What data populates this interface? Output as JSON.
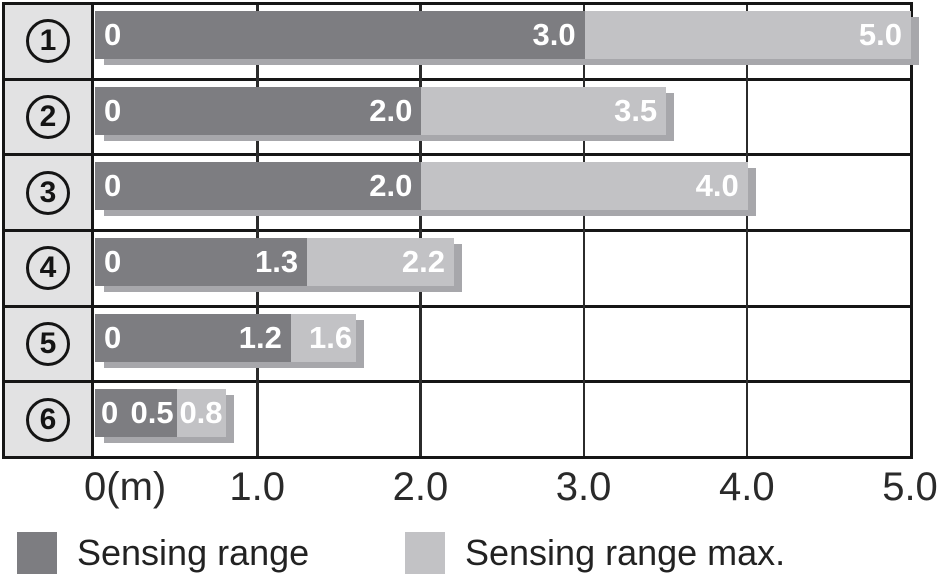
{
  "chart_data": {
    "type": "bar",
    "orientation": "horizontal",
    "title": "",
    "x_axis": {
      "origin_label": "0(m)",
      "tick_labels": [
        "1.0",
        "2.0",
        "3.0",
        "4.0",
        "5.0"
      ],
      "range": [
        0,
        5
      ],
      "unit": "m",
      "grid": true
    },
    "categories": [
      "1",
      "2",
      "3",
      "4",
      "5",
      "6"
    ],
    "series": [
      {
        "name": "Sensing range",
        "values": [
          3.0,
          2.0,
          2.0,
          1.3,
          1.2,
          0.5
        ]
      },
      {
        "name": "Sensing range max.",
        "values": [
          5.0,
          3.5,
          4.0,
          2.2,
          1.6,
          0.8
        ]
      }
    ],
    "rows": [
      {
        "label": "1",
        "zero_label": "0",
        "sensing": 3.0,
        "sensing_label": "3.0",
        "max": 5.0,
        "max_label": "5.0"
      },
      {
        "label": "2",
        "zero_label": "0",
        "sensing": 2.0,
        "sensing_label": "2.0",
        "max": 3.5,
        "max_label": "3.5"
      },
      {
        "label": "3",
        "zero_label": "0",
        "sensing": 2.0,
        "sensing_label": "2.0",
        "max": 4.0,
        "max_label": "4.0"
      },
      {
        "label": "4",
        "zero_label": "0",
        "sensing": 1.3,
        "sensing_label": "1.3",
        "max": 2.2,
        "max_label": "2.2"
      },
      {
        "label": "5",
        "zero_label": "0",
        "sensing": 1.2,
        "sensing_label": "1.2",
        "max": 1.6,
        "max_label": "1.6"
      },
      {
        "label": "6",
        "zero_label": "0",
        "sensing": 0.5,
        "sensing_label": "0.5",
        "max": 0.8,
        "max_label": "0.8"
      }
    ],
    "legend": [
      {
        "label": "Sensing range",
        "color": "#7d7d81"
      },
      {
        "label": "Sensing range max.",
        "color": "#c2c2c5"
      }
    ],
    "legend_position": "bottom"
  },
  "colors": {
    "bar_dark": "#7d7d81",
    "bar_light": "#c2c2c5",
    "bar_shadow": "#a7a7ab",
    "category_bg": "#e2e2e3",
    "line": "#161616",
    "bar_text": "#ffffff"
  }
}
